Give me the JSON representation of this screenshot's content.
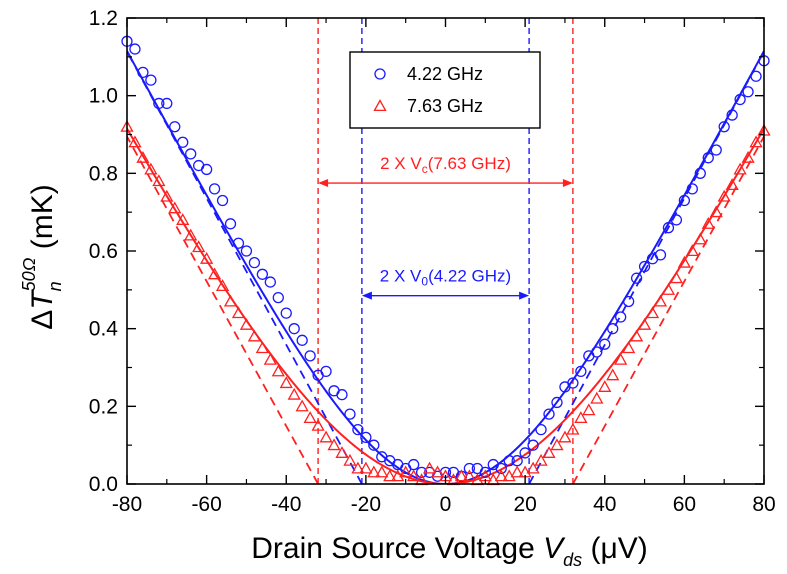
{
  "chart_data": {
    "type": "scatter",
    "xlabel": {
      "main": "Drain Source Voltage ",
      "var": "V",
      "sub": "ds",
      "unit": " (μV)"
    },
    "ylabel": {
      "delta": "Δ",
      "var": "T",
      "sub": "n",
      "sup": "50Ω",
      "unit": " (mK)"
    },
    "xlim": [
      -80,
      80
    ],
    "ylim": [
      0.0,
      1.2
    ],
    "x_ticks": [
      "-80",
      "-60",
      "-40",
      "-20",
      "0",
      "20",
      "40",
      "60",
      "80"
    ],
    "x_tick_values": [
      -80,
      -60,
      -40,
      -20,
      0,
      20,
      40,
      60,
      80
    ],
    "y_ticks": [
      "0.0",
      "0.2",
      "0.4",
      "0.6",
      "0.8",
      "1.0",
      "1.2"
    ],
    "y_tick_values": [
      0.0,
      0.2,
      0.4,
      0.6,
      0.8,
      1.0,
      1.2
    ],
    "grid": false,
    "legend_position": "top-center",
    "series": [
      {
        "name": "4.22 GHz",
        "color": "#1a1aff",
        "marker": "circle",
        "points": [
          [
            -80,
            1.14
          ],
          [
            -78,
            1.12
          ],
          [
            -76,
            1.06
          ],
          [
            -74,
            1.04
          ],
          [
            -72,
            0.98
          ],
          [
            -70,
            0.98
          ],
          [
            -68,
            0.92
          ],
          [
            -66,
            0.88
          ],
          [
            -64,
            0.85
          ],
          [
            -62,
            0.82
          ],
          [
            -60,
            0.81
          ],
          [
            -58,
            0.76
          ],
          [
            -56,
            0.73
          ],
          [
            -54,
            0.67
          ],
          [
            -52,
            0.62
          ],
          [
            -50,
            0.6
          ],
          [
            -48,
            0.57
          ],
          [
            -46,
            0.54
          ],
          [
            -44,
            0.52
          ],
          [
            -42,
            0.48
          ],
          [
            -40,
            0.44
          ],
          [
            -38,
            0.4
          ],
          [
            -36,
            0.37
          ],
          [
            -34,
            0.33
          ],
          [
            -32,
            0.28
          ],
          [
            -30,
            0.29
          ],
          [
            -28,
            0.24
          ],
          [
            -26,
            0.23
          ],
          [
            -24,
            0.18
          ],
          [
            -22,
            0.14
          ],
          [
            -20,
            0.12
          ],
          [
            -18,
            0.1
          ],
          [
            -16,
            0.07
          ],
          [
            -14,
            0.06
          ],
          [
            -12,
            0.05
          ],
          [
            -10,
            0.04
          ],
          [
            -8,
            0.05
          ],
          [
            -6,
            0.03
          ],
          [
            -4,
            0.03
          ],
          [
            -2,
            0.02
          ],
          [
            0,
            0.03
          ],
          [
            2,
            0.03
          ],
          [
            4,
            0.02
          ],
          [
            6,
            0.04
          ],
          [
            8,
            0.04
          ],
          [
            10,
            0.03
          ],
          [
            12,
            0.05
          ],
          [
            14,
            0.04
          ],
          [
            16,
            0.06
          ],
          [
            18,
            0.06
          ],
          [
            20,
            0.08
          ],
          [
            22,
            0.1
          ],
          [
            24,
            0.14
          ],
          [
            26,
            0.18
          ],
          [
            28,
            0.21
          ],
          [
            30,
            0.25
          ],
          [
            32,
            0.26
          ],
          [
            34,
            0.29
          ],
          [
            36,
            0.33
          ],
          [
            38,
            0.34
          ],
          [
            40,
            0.36
          ],
          [
            42,
            0.4
          ],
          [
            44,
            0.43
          ],
          [
            46,
            0.47
          ],
          [
            48,
            0.53
          ],
          [
            50,
            0.56
          ],
          [
            52,
            0.58
          ],
          [
            54,
            0.59
          ],
          [
            56,
            0.66
          ],
          [
            58,
            0.68
          ],
          [
            60,
            0.73
          ],
          [
            62,
            0.76
          ],
          [
            64,
            0.8
          ],
          [
            66,
            0.84
          ],
          [
            68,
            0.86
          ],
          [
            70,
            0.92
          ],
          [
            72,
            0.95
          ],
          [
            74,
            0.99
          ],
          [
            76,
            1.01
          ],
          [
            78,
            1.05
          ],
          [
            80,
            1.09
          ]
        ],
        "fit_line_style": "solid",
        "asymptote_line_style": "dashed",
        "v0": 21
      },
      {
        "name": "7.63 GHz",
        "color": "#ff2020",
        "marker": "triangle",
        "points": [
          [
            -80,
            0.92
          ],
          [
            -78,
            0.88
          ],
          [
            -76,
            0.84
          ],
          [
            -74,
            0.81
          ],
          [
            -72,
            0.78
          ],
          [
            -70,
            0.74
          ],
          [
            -68,
            0.71
          ],
          [
            -66,
            0.68
          ],
          [
            -64,
            0.64
          ],
          [
            -62,
            0.61
          ],
          [
            -60,
            0.58
          ],
          [
            -58,
            0.54
          ],
          [
            -56,
            0.51
          ],
          [
            -54,
            0.47
          ],
          [
            -52,
            0.44
          ],
          [
            -50,
            0.41
          ],
          [
            -48,
            0.38
          ],
          [
            -46,
            0.35
          ],
          [
            -44,
            0.32
          ],
          [
            -42,
            0.29
          ],
          [
            -40,
            0.26
          ],
          [
            -38,
            0.23
          ],
          [
            -36,
            0.2
          ],
          [
            -34,
            0.17
          ],
          [
            -32,
            0.15
          ],
          [
            -30,
            0.12
          ],
          [
            -28,
            0.1
          ],
          [
            -26,
            0.08
          ],
          [
            -24,
            0.06
          ],
          [
            -22,
            0.04
          ],
          [
            -20,
            0.04
          ],
          [
            -18,
            0.03
          ],
          [
            -16,
            0.03
          ],
          [
            -14,
            0.02
          ],
          [
            -12,
            0.02
          ],
          [
            -10,
            0.03
          ],
          [
            -8,
            0.02
          ],
          [
            -6,
            0.01
          ],
          [
            -4,
            0.04
          ],
          [
            -2,
            0.03
          ],
          [
            0,
            0.02
          ],
          [
            2,
            0.01
          ],
          [
            4,
            0.02
          ],
          [
            6,
            0.02
          ],
          [
            8,
            0.01
          ],
          [
            10,
            0.02
          ],
          [
            12,
            0.01
          ],
          [
            14,
            0.02
          ],
          [
            16,
            0.02
          ],
          [
            18,
            0.03
          ],
          [
            20,
            0.03
          ],
          [
            22,
            0.04
          ],
          [
            24,
            0.06
          ],
          [
            26,
            0.08
          ],
          [
            28,
            0.1
          ],
          [
            30,
            0.12
          ],
          [
            32,
            0.14
          ],
          [
            34,
            0.17
          ],
          [
            36,
            0.19
          ],
          [
            38,
            0.22
          ],
          [
            40,
            0.25
          ],
          [
            42,
            0.28
          ],
          [
            44,
            0.32
          ],
          [
            46,
            0.35
          ],
          [
            48,
            0.38
          ],
          [
            50,
            0.41
          ],
          [
            52,
            0.44
          ],
          [
            54,
            0.47
          ],
          [
            56,
            0.5
          ],
          [
            58,
            0.53
          ],
          [
            60,
            0.57
          ],
          [
            62,
            0.6
          ],
          [
            64,
            0.63
          ],
          [
            66,
            0.67
          ],
          [
            68,
            0.7
          ],
          [
            70,
            0.74
          ],
          [
            72,
            0.77
          ],
          [
            74,
            0.81
          ],
          [
            76,
            0.84
          ],
          [
            78,
            0.88
          ],
          [
            80,
            0.91
          ]
        ],
        "fit_line_style": "solid",
        "asymptote_line_style": "dashed",
        "v0": 32
      }
    ],
    "annotations": [
      {
        "prefix": "2 X V",
        "sub": "c",
        "suffix": "(7.63 GHz)",
        "color": "#ff2020",
        "y": 0.775,
        "x_span": [
          -32,
          32
        ]
      },
      {
        "prefix": "2 X V",
        "sub": "0",
        "suffix": "(4.22 GHz)",
        "color": "#1a1aff",
        "y": 0.485,
        "x_span": [
          -21,
          21
        ]
      }
    ]
  }
}
